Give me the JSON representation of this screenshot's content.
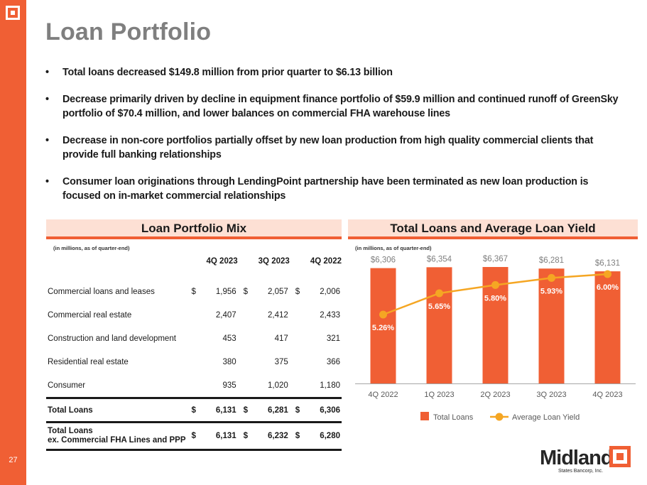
{
  "page": {
    "title": "Loan Portfolio",
    "page_number": "27",
    "brand_color": "#f05f34",
    "accent_line_color": "#f5a623"
  },
  "bullets": [
    "Total loans decreased $149.8 million from prior quarter to $6.13 billion",
    "Decrease primarily driven by decline in equipment finance portfolio of $59.9 million and continued runoff of GreenSky portfolio of $70.4 million, and lower balances on commercial FHA warehouse lines",
    "Decrease in non-core portfolios partially offset by new loan production from high quality commercial clients that provide full banking relationships",
    "Consumer loan originations through LendingPoint partnership have been terminated as new loan production is focused on in-market commercial relationships"
  ],
  "mix": {
    "header": "Loan Portfolio Mix",
    "units": "(in millions, as of quarter-end)",
    "columns": [
      "4Q 2023",
      "3Q 2023",
      "4Q 2022"
    ],
    "rows": [
      {
        "label": "Commercial loans and leases",
        "currency": "$",
        "values": [
          "1,956",
          "2,057",
          "2,006"
        ]
      },
      {
        "label": "Commercial real estate",
        "currency": "",
        "values": [
          "2,407",
          "2,412",
          "2,433"
        ]
      },
      {
        "label": "Construction and land development",
        "currency": "",
        "values": [
          "453",
          "417",
          "321"
        ]
      },
      {
        "label": "Residential real estate",
        "currency": "",
        "values": [
          "380",
          "375",
          "366"
        ]
      },
      {
        "label": "Consumer",
        "currency": "",
        "values": [
          "935",
          "1,020",
          "1,180"
        ]
      }
    ],
    "total": {
      "label": "Total Loans",
      "currency": "$",
      "values": [
        "6,131",
        "6,281",
        "6,306"
      ]
    },
    "total_ex": {
      "label_line1": "Total Loans",
      "label_line2": "ex. Commercial FHA Lines and PPP",
      "currency": "$",
      "values": [
        "6,131",
        "6,232",
        "6,280"
      ]
    }
  },
  "chart_panel": {
    "header": "Total Loans and Average Loan Yield",
    "units": "(in millions, as of quarter-end)"
  },
  "chart_data": {
    "type": "bar",
    "title": "Total Loans and Average Loan Yield",
    "subtitle": "(in millions, as of quarter-end)",
    "categories": [
      "4Q 2022",
      "1Q 2023",
      "2Q 2023",
      "3Q 2023",
      "4Q 2023"
    ],
    "series": [
      {
        "name": "Total Loans",
        "type": "bar",
        "color": "#f05f34",
        "values": [
          6306,
          6354,
          6367,
          6281,
          6131
        ],
        "labels": [
          "$6,306",
          "$6,354",
          "$6,367",
          "$6,281",
          "$6,131"
        ]
      },
      {
        "name": "Average Loan Yield",
        "type": "line",
        "color": "#f5a623",
        "values": [
          5.26,
          5.65,
          5.8,
          5.93,
          6.0
        ],
        "labels": [
          "5.26%",
          "5.65%",
          "5.80%",
          "5.93%",
          "6.00%"
        ]
      }
    ],
    "legend": [
      "Total Loans",
      "Average Loan Yield"
    ],
    "legend_position": "bottom",
    "xlabel": "",
    "ylabel": "",
    "grid": false
  },
  "logo": {
    "name": "Midland",
    "tagline": "States Bancorp, Inc."
  }
}
